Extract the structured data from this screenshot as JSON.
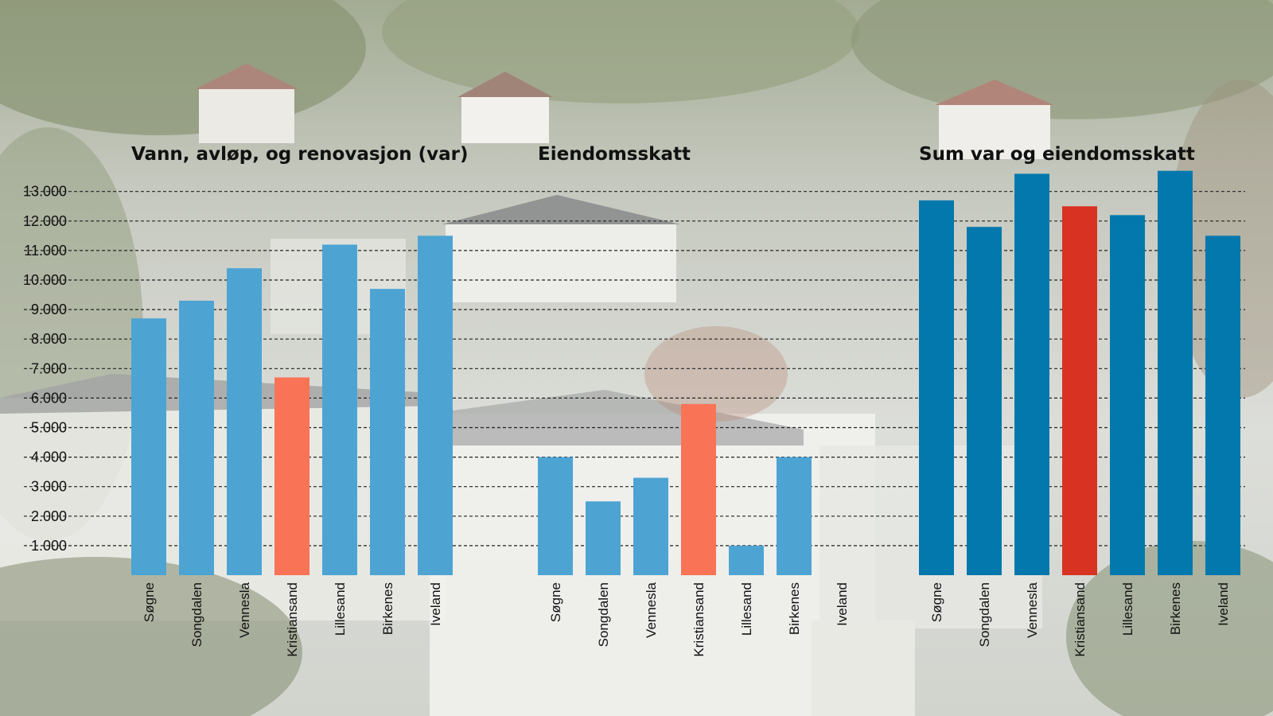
{
  "colors": {
    "light_blue": "#4da4d3",
    "orange": "#f97357",
    "dark_blue": "#0378ac",
    "red": "#d83322"
  },
  "chart_data": [
    {
      "type": "bar",
      "title": "Vann, avløp, og renovasjon (var)",
      "categories": [
        "Søgne",
        "Songdalen",
        "Vennesla",
        "Kristiansand",
        "Lillesand",
        "Birkenes",
        "Iveland"
      ],
      "values": [
        8700,
        9300,
        10400,
        6700,
        11200,
        9700,
        11500
      ],
      "highlight": "Kristiansand",
      "bar_color": "light_blue",
      "highlight_color": "orange"
    },
    {
      "type": "bar",
      "title": "Eiendomsskatt",
      "categories": [
        "Søgne",
        "Songdalen",
        "Vennesla",
        "Kristiansand",
        "Lillesand",
        "Birkenes",
        "Iveland"
      ],
      "values": [
        4000,
        2500,
        3300,
        5800,
        1000,
        4000,
        0
      ],
      "highlight": "Kristiansand",
      "bar_color": "light_blue",
      "highlight_color": "orange"
    },
    {
      "type": "bar",
      "title": "Sum var og eiendomsskatt",
      "categories": [
        "Søgne",
        "Songdalen",
        "Vennesla",
        "Kristiansand",
        "Lillesand",
        "Birkenes",
        "Iveland"
      ],
      "values": [
        12700,
        11800,
        13600,
        12500,
        12200,
        13700,
        11500
      ],
      "highlight": "Kristiansand",
      "bar_color": "dark_blue",
      "highlight_color": "red"
    }
  ],
  "y_axis": {
    "ticks": [
      1000,
      2000,
      3000,
      4000,
      5000,
      6000,
      7000,
      8000,
      9000,
      10000,
      11000,
      12000,
      13000
    ],
    "tick_labels": [
      "1.000",
      "2.000",
      "3.000",
      "4.000",
      "5.000",
      "6.000",
      "7.000",
      "8.000",
      "9.000",
      "10.000",
      "11.000",
      "12.000",
      "13.000"
    ],
    "ylim": [
      0,
      13700
    ],
    "grid": "dashed"
  }
}
